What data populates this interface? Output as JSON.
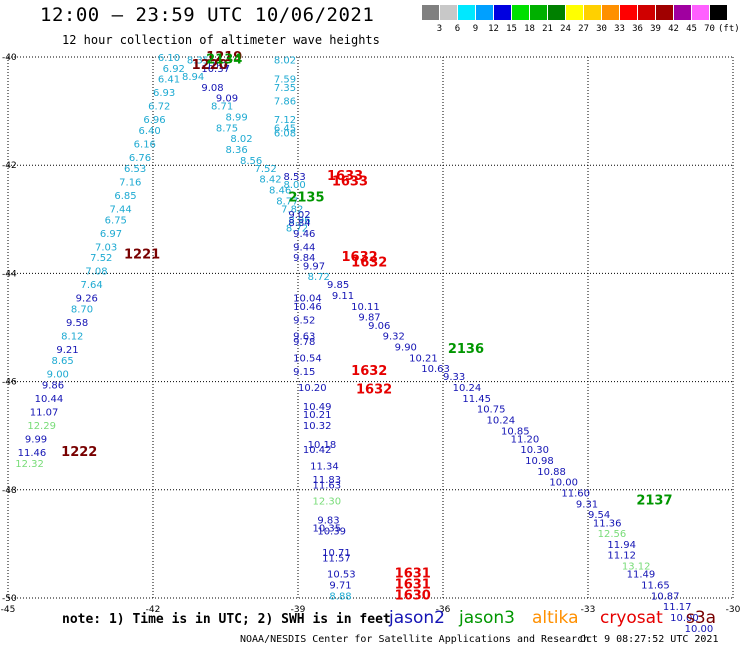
{
  "header": {
    "title": "12:00 — 23:59 UTC 10/06/2021",
    "subtitle": "12 hour collection of altimeter wave heights"
  },
  "color_scale": {
    "unit": "(ft)",
    "bins": [
      {
        "label": "",
        "color": "#808080"
      },
      {
        "label": "3",
        "color": "#c8c8c8"
      },
      {
        "label": "6",
        "color": "#00e8ff"
      },
      {
        "label": "9",
        "color": "#00a0ff"
      },
      {
        "label": "12",
        "color": "#0000e0"
      },
      {
        "label": "15",
        "color": "#00e000"
      },
      {
        "label": "18",
        "color": "#00b000"
      },
      {
        "label": "21",
        "color": "#008000"
      },
      {
        "label": "24",
        "color": "#ffff00"
      },
      {
        "label": "27",
        "color": "#ffd000"
      },
      {
        "label": "30",
        "color": "#ff9000"
      },
      {
        "label": "33",
        "color": "#ff0000"
      },
      {
        "label": "36",
        "color": "#d00000"
      },
      {
        "label": "39",
        "color": "#a00000"
      },
      {
        "label": "42",
        "color": "#a000a0"
      },
      {
        "label": "45",
        "color": "#ff60ff"
      },
      {
        "label": "70",
        "color": "#000000"
      }
    ]
  },
  "colors": {
    "cyan": "#1eaad2",
    "blue": "#1414b4",
    "lightgreen": "#78dc78",
    "green": "#009600",
    "orange": "#ff9000",
    "red": "#e60000",
    "darkred": "#780000",
    "grid": "#000000"
  },
  "map": {
    "lon_min": -45,
    "lon_max": -30,
    "lat_min": -50,
    "lat_max": -40,
    "lon_labels": [
      "-45",
      "-42",
      "-39",
      "-36",
      "-33",
      "-30"
    ],
    "lat_labels": [
      "-40",
      "-42",
      "-44",
      "-46",
      "-48",
      "-50"
    ]
  },
  "labels": [
    {
      "t": "6.10",
      "lon": -41.9,
      "lat": -40.0,
      "c": "cyan"
    },
    {
      "t": "6.92",
      "lon": -41.8,
      "lat": -40.2,
      "c": "cyan"
    },
    {
      "t": "6.41",
      "lon": -41.9,
      "lat": -40.4,
      "c": "cyan"
    },
    {
      "t": "6.93",
      "lon": -42.0,
      "lat": -40.65,
      "c": "cyan"
    },
    {
      "t": "6.72",
      "lon": -42.1,
      "lat": -40.9,
      "c": "cyan"
    },
    {
      "t": "6.96",
      "lon": -42.2,
      "lat": -41.15,
      "c": "cyan"
    },
    {
      "t": "6.40",
      "lon": -42.3,
      "lat": -41.35,
      "c": "cyan"
    },
    {
      "t": "6.16",
      "lon": -42.4,
      "lat": -41.6,
      "c": "cyan"
    },
    {
      "t": "6.76",
      "lon": -42.5,
      "lat": -41.85,
      "c": "cyan"
    },
    {
      "t": "6.53",
      "lon": -42.6,
      "lat": -42.05,
      "c": "cyan"
    },
    {
      "t": "7.16",
      "lon": -42.7,
      "lat": -42.3,
      "c": "cyan"
    },
    {
      "t": "6.85",
      "lon": -42.8,
      "lat": -42.55,
      "c": "cyan"
    },
    {
      "t": "7.44",
      "lon": -42.9,
      "lat": -42.8,
      "c": "cyan"
    },
    {
      "t": "6.75",
      "lon": -43.0,
      "lat": -43.0,
      "c": "cyan"
    },
    {
      "t": "6.97",
      "lon": -43.1,
      "lat": -43.25,
      "c": "cyan"
    },
    {
      "t": "7.03",
      "lon": -43.2,
      "lat": -43.5,
      "c": "cyan"
    },
    {
      "t": "7.52",
      "lon": -43.3,
      "lat": -43.7,
      "c": "cyan"
    },
    {
      "t": "7.08",
      "lon": -43.4,
      "lat": -43.95,
      "c": "cyan"
    },
    {
      "t": "7.64",
      "lon": -43.5,
      "lat": -44.2,
      "c": "cyan"
    },
    {
      "t": "9.26",
      "lon": -43.6,
      "lat": -44.45,
      "c": "blue"
    },
    {
      "t": "8.70",
      "lon": -43.7,
      "lat": -44.65,
      "c": "cyan"
    },
    {
      "t": "9.58",
      "lon": -43.8,
      "lat": -44.9,
      "c": "blue"
    },
    {
      "t": "8.12",
      "lon": -43.9,
      "lat": -45.15,
      "c": "cyan"
    },
    {
      "t": "9.21",
      "lon": -44.0,
      "lat": -45.4,
      "c": "blue"
    },
    {
      "t": "8.65",
      "lon": -44.1,
      "lat": -45.6,
      "c": "cyan"
    },
    {
      "t": "9.00",
      "lon": -44.2,
      "lat": -45.85,
      "c": "cyan"
    },
    {
      "t": "9.86",
      "lon": -44.3,
      "lat": -46.05,
      "c": "blue"
    },
    {
      "t": "10.44",
      "lon": -44.45,
      "lat": -46.3,
      "c": "blue"
    },
    {
      "t": "11.07",
      "lon": -44.55,
      "lat": -46.55,
      "c": "blue"
    },
    {
      "t": "12.29",
      "lon": -44.6,
      "lat": -46.8,
      "c": "lightgreen"
    },
    {
      "t": "9.99",
      "lon": -44.65,
      "lat": -47.05,
      "c": "blue"
    },
    {
      "t": "11.46",
      "lon": -44.8,
      "lat": -47.3,
      "c": "blue"
    },
    {
      "t": "12.32",
      "lon": -44.85,
      "lat": -47.5,
      "c": "lightgreen"
    },
    {
      "t": "1221",
      "lon": -42.6,
      "lat": -43.65,
      "c": "darkred",
      "big": true
    },
    {
      "t": "1222",
      "lon": -43.9,
      "lat": -47.3,
      "c": "darkred",
      "big": true
    },
    {
      "t": "8.35",
      "lon": -41.3,
      "lat": -40.05,
      "c": "cyan"
    },
    {
      "t": "10.3",
      "lon": -40.9,
      "lat": -40.15,
      "c": "blue"
    },
    {
      "t": "10.37",
      "lon": -41.0,
      "lat": -40.2,
      "c": "blue"
    },
    {
      "t": "8.94",
      "lon": -41.4,
      "lat": -40.35,
      "c": "cyan"
    },
    {
      "t": "9.08",
      "lon": -41.0,
      "lat": -40.55,
      "c": "blue"
    },
    {
      "t": "9.09",
      "lon": -40.7,
      "lat": -40.75,
      "c": "blue"
    },
    {
      "t": "8.71",
      "lon": -40.8,
      "lat": -40.9,
      "c": "cyan"
    },
    {
      "t": "8.99",
      "lon": -40.5,
      "lat": -41.1,
      "c": "cyan"
    },
    {
      "t": "8.75",
      "lon": -40.7,
      "lat": -41.3,
      "c": "cyan"
    },
    {
      "t": "8.02",
      "lon": -40.4,
      "lat": -41.5,
      "c": "cyan"
    },
    {
      "t": "8.36",
      "lon": -40.5,
      "lat": -41.7,
      "c": "cyan"
    },
    {
      "t": "8.56",
      "lon": -40.2,
      "lat": -41.9,
      "c": "cyan"
    },
    {
      "t": "7.52",
      "lon": -39.9,
      "lat": -42.05,
      "c": "cyan"
    },
    {
      "t": "8.42",
      "lon": -39.8,
      "lat": -42.25,
      "c": "cyan"
    },
    {
      "t": "8.46",
      "lon": -39.6,
      "lat": -42.45,
      "c": "cyan"
    },
    {
      "t": "8.77",
      "lon": -39.45,
      "lat": -42.65,
      "c": "cyan"
    },
    {
      "t": "7.82",
      "lon": -39.35,
      "lat": -42.8,
      "c": "cyan"
    },
    {
      "t": "8.96",
      "lon": -39.2,
      "lat": -43.0,
      "c": "cyan"
    },
    {
      "t": "8.72",
      "lon": -39.25,
      "lat": -43.15,
      "c": "cyan"
    },
    {
      "t": "9.97",
      "lon": -38.9,
      "lat": -43.85,
      "c": "blue"
    },
    {
      "t": "8.72",
      "lon": -38.8,
      "lat": -44.05,
      "c": "cyan"
    },
    {
      "t": "1220",
      "lon": -41.2,
      "lat": -40.15,
      "c": "darkred",
      "big": true
    },
    {
      "t": "1219",
      "lon": -40.9,
      "lat": -40.0,
      "c": "darkred",
      "big": true
    },
    {
      "t": "2134",
      "lon": -40.9,
      "lat": -40.05,
      "c": "green",
      "big": true
    },
    {
      "t": "8.02",
      "lon": -39.5,
      "lat": -40.05,
      "c": "cyan"
    },
    {
      "t": "7.59",
      "lon": -39.5,
      "lat": -40.4,
      "c": "cyan"
    },
    {
      "t": "7.35",
      "lon": -39.5,
      "lat": -40.55,
      "c": "cyan"
    },
    {
      "t": "7.86",
      "lon": -39.5,
      "lat": -40.8,
      "c": "cyan"
    },
    {
      "t": "7.12",
      "lon": -39.5,
      "lat": -41.15,
      "c": "cyan"
    },
    {
      "t": "6.45",
      "lon": -39.5,
      "lat": -41.3,
      "c": "cyan"
    },
    {
      "t": "6.08",
      "lon": -39.5,
      "lat": -41.4,
      "c": "cyan"
    },
    {
      "t": "8.53",
      "lon": -39.3,
      "lat": -42.2,
      "c": "blue"
    },
    {
      "t": "8.00",
      "lon": -39.3,
      "lat": -42.35,
      "c": "cyan"
    },
    {
      "t": "2135",
      "lon": -39.2,
      "lat": -42.6,
      "c": "green",
      "big": true
    },
    {
      "t": "9.02",
      "lon": -39.2,
      "lat": -42.9,
      "c": "blue"
    },
    {
      "t": "8.84",
      "lon": -39.2,
      "lat": -43.05,
      "c": "blue"
    },
    {
      "t": "9.46",
      "lon": -39.1,
      "lat": -43.25,
      "c": "blue"
    },
    {
      "t": "9.44",
      "lon": -39.1,
      "lat": -43.5,
      "c": "blue"
    },
    {
      "t": "9.84",
      "lon": -39.1,
      "lat": -43.7,
      "c": "blue"
    },
    {
      "t": "9.85",
      "lon": -38.4,
      "lat": -44.2,
      "c": "blue"
    },
    {
      "t": "9.11",
      "lon": -38.3,
      "lat": -44.4,
      "c": "blue"
    },
    {
      "t": "10.11",
      "lon": -37.9,
      "lat": -44.6,
      "c": "blue"
    },
    {
      "t": "9.87",
      "lon": -37.75,
      "lat": -44.8,
      "c": "blue"
    },
    {
      "t": "9.06",
      "lon": -37.55,
      "lat": -44.95,
      "c": "blue"
    },
    {
      "t": "9.32",
      "lon": -37.25,
      "lat": -45.15,
      "c": "blue"
    },
    {
      "t": "9.90",
      "lon": -37.0,
      "lat": -45.35,
      "c": "blue"
    },
    {
      "t": "10.21",
      "lon": -36.7,
      "lat": -45.55,
      "c": "blue"
    },
    {
      "t": "10.63",
      "lon": -36.45,
      "lat": -45.75,
      "c": "blue"
    },
    {
      "t": "9.33",
      "lon": -36.0,
      "lat": -45.9,
      "c": "blue"
    },
    {
      "t": "10.24",
      "lon": -35.8,
      "lat": -46.1,
      "c": "blue"
    },
    {
      "t": "11.45",
      "lon": -35.6,
      "lat": -46.3,
      "c": "blue"
    },
    {
      "t": "10.75",
      "lon": -35.3,
      "lat": -46.5,
      "c": "blue"
    },
    {
      "t": "10.24",
      "lon": -35.1,
      "lat": -46.7,
      "c": "blue"
    },
    {
      "t": "10.85",
      "lon": -34.8,
      "lat": -46.9,
      "c": "blue"
    },
    {
      "t": "11.20",
      "lon": -34.6,
      "lat": -47.05,
      "c": "blue"
    },
    {
      "t": "10.30",
      "lon": -34.4,
      "lat": -47.25,
      "c": "blue"
    },
    {
      "t": "10.98",
      "lon": -34.3,
      "lat": -47.45,
      "c": "blue"
    },
    {
      "t": "10.88",
      "lon": -34.05,
      "lat": -47.65,
      "c": "blue"
    },
    {
      "t": "10.00",
      "lon": -33.8,
      "lat": -47.85,
      "c": "blue"
    },
    {
      "t": "11.60",
      "lon": -33.55,
      "lat": -48.05,
      "c": "blue"
    },
    {
      "t": "9.31",
      "lon": -33.25,
      "lat": -48.25,
      "c": "blue"
    },
    {
      "t": "9.54",
      "lon": -33.0,
      "lat": -48.45,
      "c": "blue"
    },
    {
      "t": "11.36",
      "lon": -32.9,
      "lat": -48.6,
      "c": "blue"
    },
    {
      "t": "12.56",
      "lon": -32.8,
      "lat": -48.8,
      "c": "lightgreen"
    },
    {
      "t": "11.94",
      "lon": -32.6,
      "lat": -49.0,
      "c": "blue"
    },
    {
      "t": "11.12",
      "lon": -32.6,
      "lat": -49.2,
      "c": "blue"
    },
    {
      "t": "13.12",
      "lon": -32.3,
      "lat": -49.4,
      "c": "lightgreen"
    },
    {
      "t": "11.49",
      "lon": -32.2,
      "lat": -49.55,
      "c": "blue"
    },
    {
      "t": "11.65",
      "lon": -31.9,
      "lat": -49.75,
      "c": "blue"
    },
    {
      "t": "10.87",
      "lon": -31.7,
      "lat": -49.95,
      "c": "blue"
    },
    {
      "t": "11.17",
      "lon": -31.45,
      "lat": -50.15,
      "c": "blue"
    },
    {
      "t": "10.00",
      "lon": -31.3,
      "lat": -50.35,
      "c": "blue"
    },
    {
      "t": "10.00",
      "lon": -31.0,
      "lat": -50.55,
      "c": "blue"
    },
    {
      "t": "2136",
      "lon": -35.9,
      "lat": -45.4,
      "c": "green",
      "big": true
    },
    {
      "t": "2137",
      "lon": -32.0,
      "lat": -48.2,
      "c": "green",
      "big": true
    },
    {
      "t": "10.04",
      "lon": -39.1,
      "lat": -44.45,
      "c": "blue"
    },
    {
      "t": "10.46",
      "lon": -39.1,
      "lat": -44.6,
      "c": "blue"
    },
    {
      "t": "9.52",
      "lon": -39.1,
      "lat": -44.85,
      "c": "blue"
    },
    {
      "t": "9.63",
      "lon": -39.1,
      "lat": -45.15,
      "c": "blue"
    },
    {
      "t": "9.78",
      "lon": -39.1,
      "lat": -45.25,
      "c": "blue"
    },
    {
      "t": "10.54",
      "lon": -39.1,
      "lat": -45.55,
      "c": "blue"
    },
    {
      "t": "9.15",
      "lon": -39.1,
      "lat": -45.8,
      "c": "blue"
    },
    {
      "t": "10.20",
      "lon": -39.0,
      "lat": -46.1,
      "c": "blue"
    },
    {
      "t": "10.49",
      "lon": -38.9,
      "lat": -46.45,
      "c": "blue"
    },
    {
      "t": "10.21",
      "lon": -38.9,
      "lat": -46.6,
      "c": "blue"
    },
    {
      "t": "10.32",
      "lon": -38.9,
      "lat": -46.8,
      "c": "blue"
    },
    {
      "t": "10.18",
      "lon": -38.8,
      "lat": -47.15,
      "c": "blue"
    },
    {
      "t": "10.42",
      "lon": -38.9,
      "lat": -47.25,
      "c": "blue"
    },
    {
      "t": "11.34",
      "lon": -38.75,
      "lat": -47.55,
      "c": "blue"
    },
    {
      "t": "11.83",
      "lon": -38.7,
      "lat": -47.8,
      "c": "blue"
    },
    {
      "t": "11.63",
      "lon": -38.7,
      "lat": -47.9,
      "c": "blue"
    },
    {
      "t": "12.30",
      "lon": -38.7,
      "lat": -48.2,
      "c": "lightgreen"
    },
    {
      "t": "9.83",
      "lon": -38.6,
      "lat": -48.55,
      "c": "blue"
    },
    {
      "t": "10.35",
      "lon": -38.7,
      "lat": -48.7,
      "c": "blue"
    },
    {
      "t": "10.39",
      "lon": -38.6,
      "lat": -48.75,
      "c": "blue"
    },
    {
      "t": "10.71",
      "lon": -38.5,
      "lat": -49.15,
      "c": "blue"
    },
    {
      "t": "11.57",
      "lon": -38.5,
      "lat": -49.25,
      "c": "blue"
    },
    {
      "t": "10.53",
      "lon": -38.4,
      "lat": -49.55,
      "c": "blue"
    },
    {
      "t": "9.71",
      "lon": -38.35,
      "lat": -49.75,
      "c": "blue"
    },
    {
      "t": "8.88",
      "lon": -38.35,
      "lat": -49.95,
      "c": "cyan"
    },
    {
      "t": "1633",
      "lon": -38.4,
      "lat": -42.2,
      "c": "red",
      "big": true
    },
    {
      "t": "1633",
      "lon": -38.3,
      "lat": -42.3,
      "c": "red",
      "big": true
    },
    {
      "t": "1632",
      "lon": -38.1,
      "lat": -43.7,
      "c": "red",
      "big": true
    },
    {
      "t": "1632",
      "lon": -37.9,
      "lat": -43.8,
      "c": "red",
      "big": true
    },
    {
      "t": "1632",
      "lon": -37.9,
      "lat": -45.8,
      "c": "red",
      "big": true
    },
    {
      "t": "1632",
      "lon": -37.8,
      "lat": -46.15,
      "c": "red",
      "big": true
    },
    {
      "t": "1631",
      "lon": -37.0,
      "lat": -49.55,
      "c": "red",
      "big": true
    },
    {
      "t": "1631",
      "lon": -37.0,
      "lat": -49.75,
      "c": "red",
      "big": true
    },
    {
      "t": "1630",
      "lon": -37.0,
      "lat": -49.95,
      "c": "red",
      "big": true
    }
  ],
  "footer": {
    "note": "note: 1) Time is in UTC; 2) SWH is in feet",
    "legend": [
      {
        "name": "jason2",
        "color_key": "blue"
      },
      {
        "name": "jason3",
        "color_key": "green"
      },
      {
        "name": "altika",
        "color_key": "orange"
      },
      {
        "name": "cryosat",
        "color_key": "red"
      },
      {
        "name": "s3a",
        "color_key": "darkred"
      }
    ],
    "credit": "NOAA/NESDIS Center for Satellite Applications and Research",
    "timestamp": "Oct  9 08:27:52 UTC 2021"
  }
}
